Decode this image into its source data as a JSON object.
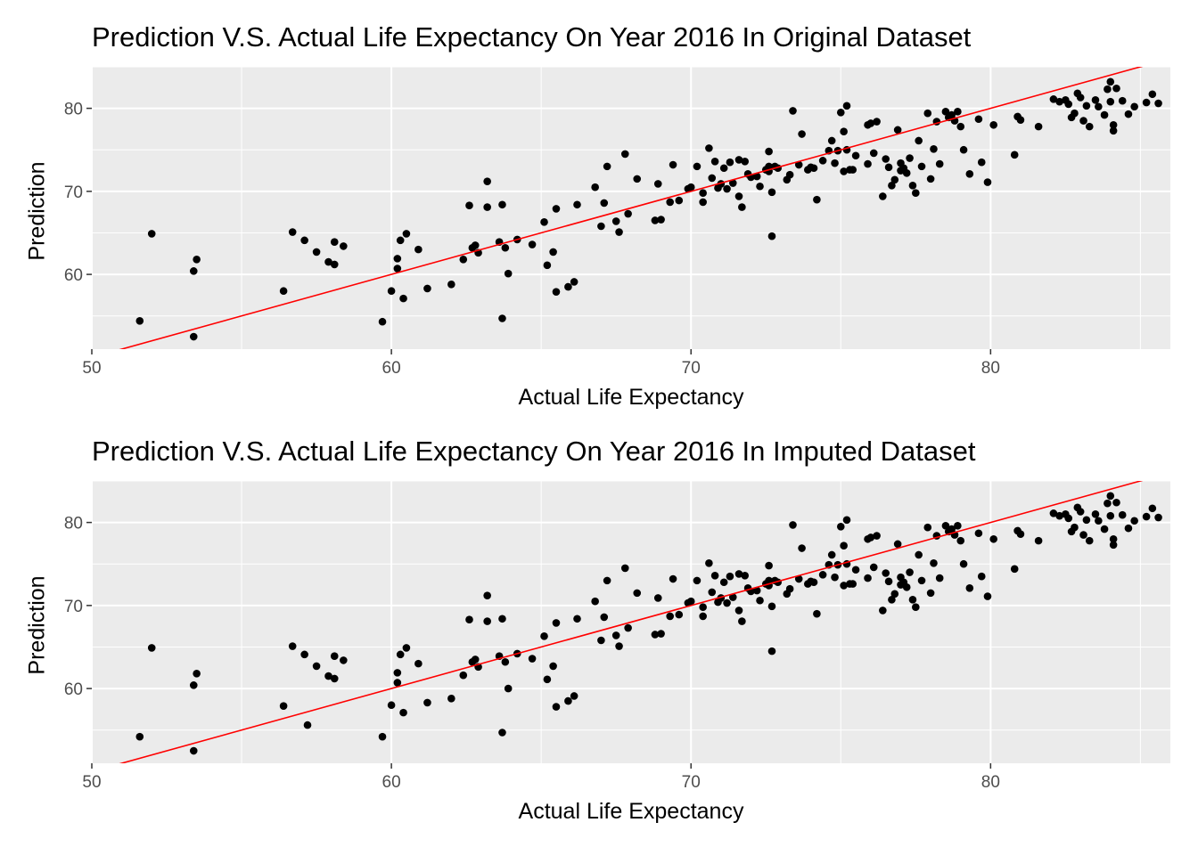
{
  "chart_data": [
    {
      "type": "scatter",
      "title": "Prediction V.S. Actual Life Expectancy On Year 2016 In Original Dataset",
      "xlabel": "Actual Life Expectancy",
      "ylabel": "Prediction",
      "xlim": [
        50,
        86
      ],
      "ylim": [
        51,
        85
      ],
      "xticks": [
        50,
        60,
        70,
        80
      ],
      "yticks": [
        60,
        70,
        80
      ],
      "grid": true,
      "background": "#ebebeb",
      "point_color": "#000000",
      "line_color": "#ff0000",
      "reference_line": {
        "intercept": 0,
        "slope": 1
      },
      "points": [
        [
          51.6,
          54.4
        ],
        [
          52.0,
          64.9
        ],
        [
          53.4,
          60.4
        ],
        [
          53.5,
          61.8
        ],
        [
          53.4,
          52.5
        ],
        [
          56.4,
          58.0
        ],
        [
          56.7,
          65.1
        ],
        [
          57.1,
          64.1
        ],
        [
          57.5,
          62.7
        ],
        [
          57.9,
          61.5
        ],
        [
          58.1,
          63.9
        ],
        [
          58.1,
          61.2
        ],
        [
          58.4,
          63.4
        ],
        [
          59.7,
          54.3
        ],
        [
          60.0,
          58.0
        ],
        [
          60.2,
          60.7
        ],
        [
          60.2,
          61.9
        ],
        [
          60.3,
          64.1
        ],
        [
          60.4,
          57.1
        ],
        [
          60.5,
          64.9
        ],
        [
          60.9,
          63.0
        ],
        [
          61.2,
          58.3
        ],
        [
          62.0,
          58.8
        ],
        [
          62.4,
          61.8
        ],
        [
          62.6,
          68.3
        ],
        [
          62.7,
          63.2
        ],
        [
          62.8,
          63.5
        ],
        [
          62.9,
          62.6
        ],
        [
          63.2,
          71.2
        ],
        [
          63.2,
          68.1
        ],
        [
          63.6,
          63.9
        ],
        [
          63.7,
          68.4
        ],
        [
          63.8,
          63.2
        ],
        [
          63.9,
          60.1
        ],
        [
          63.7,
          54.7
        ],
        [
          64.2,
          64.2
        ],
        [
          64.7,
          63.6
        ],
        [
          65.1,
          66.3
        ],
        [
          65.2,
          61.1
        ],
        [
          65.4,
          62.7
        ],
        [
          65.5,
          67.9
        ],
        [
          65.5,
          57.9
        ],
        [
          65.9,
          58.5
        ],
        [
          66.1,
          59.1
        ],
        [
          66.2,
          68.4
        ],
        [
          66.8,
          70.5
        ],
        [
          67.0,
          65.8
        ],
        [
          67.1,
          68.6
        ],
        [
          67.2,
          73.0
        ],
        [
          67.5,
          66.4
        ],
        [
          67.6,
          65.1
        ],
        [
          67.8,
          74.5
        ],
        [
          67.9,
          67.3
        ],
        [
          68.2,
          71.5
        ],
        [
          68.8,
          66.5
        ],
        [
          68.9,
          70.9
        ],
        [
          69.0,
          66.6
        ],
        [
          69.3,
          68.7
        ],
        [
          69.4,
          73.2
        ],
        [
          69.6,
          68.9
        ],
        [
          69.9,
          70.3
        ],
        [
          70.0,
          70.5
        ],
        [
          70.2,
          73.0
        ],
        [
          70.4,
          69.8
        ],
        [
          70.4,
          68.7
        ],
        [
          70.6,
          75.2
        ],
        [
          70.7,
          71.6
        ],
        [
          70.8,
          73.6
        ],
        [
          70.9,
          70.4
        ],
        [
          71.0,
          70.9
        ],
        [
          71.1,
          72.8
        ],
        [
          71.2,
          70.3
        ],
        [
          71.3,
          73.5
        ],
        [
          71.4,
          71.0
        ],
        [
          71.6,
          73.8
        ],
        [
          71.6,
          69.4
        ],
        [
          71.7,
          68.1
        ],
        [
          71.8,
          73.6
        ],
        [
          71.9,
          72.1
        ],
        [
          72.0,
          71.7
        ],
        [
          72.2,
          71.8
        ],
        [
          72.3,
          70.6
        ],
        [
          72.5,
          72.6
        ],
        [
          72.6,
          73.0
        ],
        [
          72.6,
          74.8
        ],
        [
          72.6,
          72.4
        ],
        [
          72.7,
          69.9
        ],
        [
          72.8,
          73.0
        ],
        [
          72.9,
          72.8
        ],
        [
          72.7,
          64.6
        ],
        [
          73.2,
          71.4
        ],
        [
          73.3,
          72.0
        ],
        [
          73.4,
          79.7
        ],
        [
          73.6,
          73.2
        ],
        [
          73.7,
          76.9
        ],
        [
          73.9,
          72.6
        ],
        [
          74.0,
          72.9
        ],
        [
          74.1,
          72.8
        ],
        [
          74.2,
          69.0
        ],
        [
          74.4,
          73.7
        ],
        [
          74.6,
          74.9
        ],
        [
          74.7,
          76.1
        ],
        [
          74.8,
          73.4
        ],
        [
          74.9,
          74.9
        ],
        [
          75.0,
          79.5
        ],
        [
          75.1,
          77.2
        ],
        [
          75.2,
          75.0
        ],
        [
          75.1,
          72.4
        ],
        [
          75.2,
          80.3
        ],
        [
          75.3,
          72.6
        ],
        [
          75.4,
          72.6
        ],
        [
          75.5,
          74.3
        ],
        [
          75.9,
          73.3
        ],
        [
          75.9,
          78.0
        ],
        [
          76.0,
          78.2
        ],
        [
          76.2,
          78.4
        ],
        [
          76.1,
          74.6
        ],
        [
          76.4,
          69.4
        ],
        [
          76.5,
          73.9
        ],
        [
          76.6,
          72.9
        ],
        [
          76.7,
          70.7
        ],
        [
          76.8,
          71.4
        ],
        [
          76.9,
          77.4
        ],
        [
          77.0,
          73.4
        ],
        [
          77.0,
          72.5
        ],
        [
          77.1,
          72.8
        ],
        [
          77.2,
          72.2
        ],
        [
          77.3,
          74.0
        ],
        [
          77.4,
          70.7
        ],
        [
          77.5,
          69.8
        ],
        [
          77.6,
          76.1
        ],
        [
          77.7,
          73.0
        ],
        [
          77.9,
          79.4
        ],
        [
          78.0,
          71.5
        ],
        [
          78.1,
          75.1
        ],
        [
          78.2,
          78.4
        ],
        [
          78.3,
          73.3
        ],
        [
          78.5,
          79.6
        ],
        [
          78.6,
          78.9
        ],
        [
          78.7,
          79.2
        ],
        [
          78.8,
          78.5
        ],
        [
          78.9,
          79.6
        ],
        [
          79.0,
          77.8
        ],
        [
          79.1,
          75.0
        ],
        [
          79.3,
          72.1
        ],
        [
          79.6,
          78.7
        ],
        [
          79.7,
          73.5
        ],
        [
          79.9,
          71.1
        ],
        [
          80.1,
          78.0
        ],
        [
          80.8,
          74.4
        ],
        [
          80.9,
          79.0
        ],
        [
          81.0,
          78.6
        ],
        [
          81.6,
          77.8
        ],
        [
          82.1,
          81.1
        ],
        [
          82.3,
          80.8
        ],
        [
          82.5,
          81.0
        ],
        [
          82.6,
          80.5
        ],
        [
          82.7,
          78.9
        ],
        [
          82.8,
          79.4
        ],
        [
          82.9,
          81.8
        ],
        [
          83.0,
          81.3
        ],
        [
          83.1,
          78.5
        ],
        [
          83.2,
          80.3
        ],
        [
          83.3,
          77.8
        ],
        [
          83.5,
          81.0
        ],
        [
          83.6,
          80.2
        ],
        [
          83.8,
          79.2
        ],
        [
          83.9,
          82.3
        ],
        [
          84.0,
          83.2
        ],
        [
          84.0,
          80.8
        ],
        [
          84.1,
          78.0
        ],
        [
          84.2,
          82.4
        ],
        [
          84.4,
          80.9
        ],
        [
          84.6,
          79.3
        ],
        [
          84.8,
          80.2
        ],
        [
          85.2,
          80.7
        ],
        [
          85.4,
          81.7
        ],
        [
          85.6,
          80.6
        ],
        [
          84.1,
          77.3
        ]
      ]
    },
    {
      "type": "scatter",
      "title": "Prediction V.S. Actual Life Expectancy On Year 2016 In Imputed Dataset",
      "xlabel": "Actual Life Expectancy",
      "ylabel": "Prediction",
      "xlim": [
        50,
        86
      ],
      "ylim": [
        51,
        85
      ],
      "xticks": [
        50,
        60,
        70,
        80
      ],
      "yticks": [
        60,
        70,
        80
      ],
      "grid": true,
      "background": "#ebebeb",
      "point_color": "#000000",
      "line_color": "#ff0000",
      "reference_line": {
        "intercept": 0,
        "slope": 1
      },
      "points": [
        [
          51.6,
          54.2
        ],
        [
          52.0,
          64.9
        ],
        [
          53.4,
          60.4
        ],
        [
          53.5,
          61.8
        ],
        [
          53.4,
          52.5
        ],
        [
          56.4,
          57.9
        ],
        [
          56.7,
          65.1
        ],
        [
          57.1,
          64.1
        ],
        [
          57.2,
          55.6
        ],
        [
          57.5,
          62.7
        ],
        [
          57.9,
          61.5
        ],
        [
          58.1,
          63.9
        ],
        [
          58.1,
          61.2
        ],
        [
          58.4,
          63.4
        ],
        [
          59.7,
          54.2
        ],
        [
          60.0,
          58.0
        ],
        [
          60.2,
          60.7
        ],
        [
          60.2,
          61.9
        ],
        [
          60.3,
          64.1
        ],
        [
          60.4,
          57.1
        ],
        [
          60.5,
          64.9
        ],
        [
          60.9,
          63.0
        ],
        [
          61.2,
          58.3
        ],
        [
          62.0,
          58.8
        ],
        [
          62.4,
          61.6
        ],
        [
          62.6,
          68.3
        ],
        [
          62.7,
          63.2
        ],
        [
          62.8,
          63.5
        ],
        [
          62.9,
          62.6
        ],
        [
          63.2,
          71.2
        ],
        [
          63.2,
          68.1
        ],
        [
          63.6,
          63.9
        ],
        [
          63.7,
          68.4
        ],
        [
          63.8,
          63.2
        ],
        [
          63.9,
          60.0
        ],
        [
          63.7,
          54.7
        ],
        [
          64.2,
          64.2
        ],
        [
          64.7,
          63.6
        ],
        [
          65.1,
          66.3
        ],
        [
          65.2,
          61.1
        ],
        [
          65.4,
          62.7
        ],
        [
          65.5,
          67.9
        ],
        [
          65.5,
          57.8
        ],
        [
          65.9,
          58.5
        ],
        [
          66.1,
          59.1
        ],
        [
          66.2,
          68.4
        ],
        [
          66.8,
          70.5
        ],
        [
          67.0,
          65.8
        ],
        [
          67.1,
          68.6
        ],
        [
          67.2,
          73.0
        ],
        [
          67.5,
          66.4
        ],
        [
          67.6,
          65.1
        ],
        [
          67.8,
          74.5
        ],
        [
          67.9,
          67.3
        ],
        [
          68.2,
          71.5
        ],
        [
          68.8,
          66.5
        ],
        [
          68.9,
          70.9
        ],
        [
          69.0,
          66.6
        ],
        [
          69.3,
          68.7
        ],
        [
          69.4,
          73.2
        ],
        [
          69.6,
          68.9
        ],
        [
          69.9,
          70.3
        ],
        [
          70.0,
          70.5
        ],
        [
          70.2,
          73.0
        ],
        [
          70.4,
          69.8
        ],
        [
          70.4,
          68.7
        ],
        [
          70.6,
          75.1
        ],
        [
          70.7,
          71.6
        ],
        [
          70.8,
          73.6
        ],
        [
          70.9,
          70.4
        ],
        [
          71.0,
          70.9
        ],
        [
          71.1,
          72.8
        ],
        [
          71.2,
          70.3
        ],
        [
          71.3,
          73.5
        ],
        [
          71.4,
          71.0
        ],
        [
          71.6,
          73.8
        ],
        [
          71.6,
          69.4
        ],
        [
          71.7,
          68.1
        ],
        [
          71.8,
          73.6
        ],
        [
          71.9,
          72.1
        ],
        [
          72.0,
          71.7
        ],
        [
          72.2,
          71.8
        ],
        [
          72.3,
          70.6
        ],
        [
          72.5,
          72.6
        ],
        [
          72.6,
          73.0
        ],
        [
          72.6,
          74.8
        ],
        [
          72.6,
          72.4
        ],
        [
          72.7,
          69.9
        ],
        [
          72.8,
          73.0
        ],
        [
          72.9,
          72.8
        ],
        [
          72.7,
          64.5
        ],
        [
          73.2,
          71.4
        ],
        [
          73.3,
          72.0
        ],
        [
          73.4,
          79.7
        ],
        [
          73.6,
          73.2
        ],
        [
          73.7,
          76.9
        ],
        [
          73.9,
          72.6
        ],
        [
          74.0,
          72.9
        ],
        [
          74.1,
          72.8
        ],
        [
          74.2,
          69.0
        ],
        [
          74.4,
          73.7
        ],
        [
          74.6,
          74.9
        ],
        [
          74.7,
          76.1
        ],
        [
          74.8,
          73.4
        ],
        [
          74.9,
          74.9
        ],
        [
          75.0,
          79.5
        ],
        [
          75.1,
          77.2
        ],
        [
          75.2,
          75.0
        ],
        [
          75.1,
          72.4
        ],
        [
          75.2,
          80.3
        ],
        [
          75.3,
          72.6
        ],
        [
          75.4,
          72.6
        ],
        [
          75.5,
          74.3
        ],
        [
          75.9,
          73.3
        ],
        [
          75.9,
          78.0
        ],
        [
          76.0,
          78.2
        ],
        [
          76.2,
          78.4
        ],
        [
          76.1,
          74.6
        ],
        [
          76.4,
          69.4
        ],
        [
          76.5,
          73.9
        ],
        [
          76.6,
          72.9
        ],
        [
          76.7,
          70.7
        ],
        [
          76.8,
          71.4
        ],
        [
          76.9,
          77.4
        ],
        [
          77.0,
          73.4
        ],
        [
          77.0,
          72.5
        ],
        [
          77.1,
          72.8
        ],
        [
          77.2,
          72.2
        ],
        [
          77.3,
          74.0
        ],
        [
          77.4,
          70.7
        ],
        [
          77.5,
          69.8
        ],
        [
          77.6,
          76.1
        ],
        [
          77.7,
          73.0
        ],
        [
          77.9,
          79.4
        ],
        [
          78.0,
          71.5
        ],
        [
          78.1,
          75.1
        ],
        [
          78.2,
          78.4
        ],
        [
          78.3,
          73.3
        ],
        [
          78.5,
          79.6
        ],
        [
          78.6,
          78.9
        ],
        [
          78.7,
          79.2
        ],
        [
          78.8,
          78.5
        ],
        [
          78.9,
          79.6
        ],
        [
          79.0,
          77.8
        ],
        [
          79.1,
          75.0
        ],
        [
          79.3,
          72.1
        ],
        [
          79.6,
          78.7
        ],
        [
          79.7,
          73.5
        ],
        [
          79.9,
          71.1
        ],
        [
          80.1,
          78.0
        ],
        [
          80.8,
          74.4
        ],
        [
          80.9,
          79.0
        ],
        [
          81.0,
          78.6
        ],
        [
          81.6,
          77.8
        ],
        [
          82.1,
          81.1
        ],
        [
          82.3,
          80.8
        ],
        [
          82.5,
          81.0
        ],
        [
          82.6,
          80.5
        ],
        [
          82.7,
          78.9
        ],
        [
          82.8,
          79.4
        ],
        [
          82.9,
          81.8
        ],
        [
          83.0,
          81.3
        ],
        [
          83.1,
          78.5
        ],
        [
          83.2,
          80.3
        ],
        [
          83.3,
          77.8
        ],
        [
          83.5,
          81.0
        ],
        [
          83.6,
          80.2
        ],
        [
          83.8,
          79.2
        ],
        [
          83.9,
          82.3
        ],
        [
          84.0,
          83.2
        ],
        [
          84.0,
          80.8
        ],
        [
          84.1,
          78.0
        ],
        [
          84.2,
          82.4
        ],
        [
          84.4,
          80.9
        ],
        [
          84.6,
          79.3
        ],
        [
          84.8,
          80.2
        ],
        [
          85.2,
          80.7
        ],
        [
          85.4,
          81.7
        ],
        [
          85.6,
          80.6
        ],
        [
          84.1,
          77.3
        ]
      ]
    }
  ]
}
